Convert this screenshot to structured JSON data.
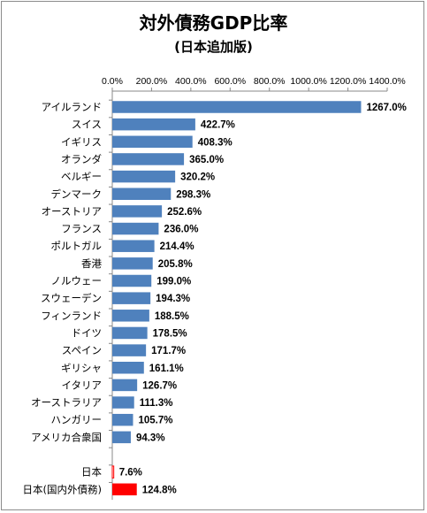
{
  "chart_data": {
    "type": "bar",
    "orientation": "horizontal",
    "title": "対外債務GDP比率",
    "subtitle": "(日本追加版)",
    "xlim": [
      0,
      1400
    ],
    "tick_labels": [
      "0.0%",
      "200.0%",
      "400.0%",
      "600.0%",
      "800.0%",
      "1000.0%",
      "1200.0%",
      "1400.0%"
    ],
    "tick_values": [
      0,
      200,
      400,
      600,
      800,
      1000,
      1200,
      1400
    ],
    "axis_position": "top",
    "grid": false,
    "series_color": "#4f81bd",
    "highlight_color": "#ff0000",
    "categories": [
      "アイルランド",
      "スイス",
      "イギリス",
      "オランダ",
      "ベルギー",
      "デンマーク",
      "オーストリア",
      "フランス",
      "ポルトガル",
      "香港",
      "ノルウェー",
      "スウェーデン",
      "フィンランド",
      "ドイツ",
      "スペイン",
      "ギリシャ",
      "イタリア",
      "オーストラリア",
      "ハンガリー",
      "アメリカ合衆国",
      "",
      "日本",
      "日本(国内外債務)"
    ],
    "values": [
      1267.0,
      422.7,
      408.3,
      365.0,
      320.2,
      298.3,
      252.6,
      236.0,
      214.4,
      205.8,
      199.0,
      194.3,
      188.5,
      178.5,
      171.7,
      161.1,
      126.7,
      111.3,
      105.7,
      94.3,
      null,
      7.6,
      124.8
    ],
    "value_labels": [
      "1267.0%",
      "422.7%",
      "408.3%",
      "365.0%",
      "320.2%",
      "298.3%",
      "252.6%",
      "236.0%",
      "214.4%",
      "205.8%",
      "199.0%",
      "194.3%",
      "188.5%",
      "178.5%",
      "171.7%",
      "161.1%",
      "126.7%",
      "111.3%",
      "105.7%",
      "94.3%",
      "",
      "7.6%",
      "124.8%"
    ],
    "highlighted": [
      "日本",
      "日本(国内外債務)"
    ]
  }
}
